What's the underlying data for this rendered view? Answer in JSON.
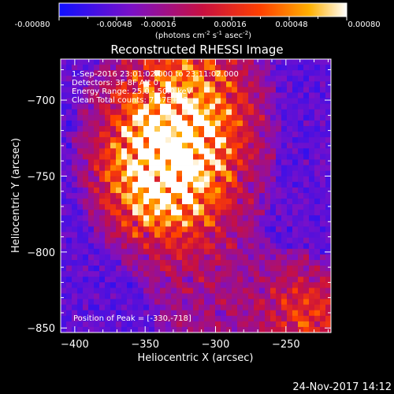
{
  "colorbar": {
    "ticks": [
      "-0.00080",
      "-0.00048",
      "-0.00016",
      "0.00016",
      "0.00048",
      "0.00080"
    ],
    "unit_prefix": "(photons cm",
    "unit_exp1": "-2",
    "unit_mid1": " s",
    "unit_exp2": "-1",
    "unit_mid2": " asec",
    "unit_exp3": "-2",
    "unit_suffix": ")",
    "colors": [
      "#1010ff",
      "#7a10c8",
      "#c81040",
      "#ff4000",
      "#ffb000",
      "#ffffff"
    ]
  },
  "overlay": {
    "line1": "1-Sep-2016 23:01:02.000 to 23:11:02.000",
    "line2": "Detectors: 3F 8F  Att 0",
    "line3": "Energy Range: 25.0 - 50.0 keV",
    "line4": "Clean       Total counts: 7.47E+03",
    "peak": "Position of Peak = [-330,-718]"
  },
  "footer_date": "24-Nov-2017 14:12",
  "chart_data": {
    "type": "heatmap",
    "title": "Reconstructed RHESSI Image",
    "xlabel": "Heliocentric X (arcsec)",
    "ylabel": "Heliocentric Y (arcsec)",
    "xlim": [
      -410,
      -218
    ],
    "ylim": [
      -853,
      -673
    ],
    "x_ticks": [
      -400,
      -350,
      -300,
      -250
    ],
    "y_ticks": [
      -850,
      -800,
      -750,
      -700
    ],
    "x_tick_labels": [
      "−400",
      "−350",
      "−300",
      "−250"
    ],
    "y_tick_labels": [
      "−850",
      "−800",
      "−750",
      "−700"
    ],
    "colorbar_range": [
      -0.0008,
      0.0008
    ],
    "peak_position": [
      -330,
      -718
    ],
    "colormap": [
      "#1010ff",
      "#7a10c8",
      "#c81040",
      "#ff4000",
      "#ffb000",
      "#ffffff"
    ]
  }
}
